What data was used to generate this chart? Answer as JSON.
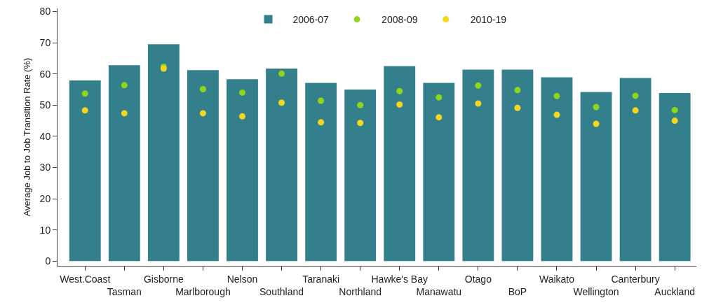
{
  "chart_data": {
    "type": "bar",
    "ylabel": "Average Job to Job Transition Rate (%)",
    "categories": [
      "West.Coast",
      "Tasman",
      "Gisborne",
      "Marlborough",
      "Nelson",
      "Southland",
      "Taranaki",
      "Northland",
      "Hawke's Bay",
      "Manawatu",
      "Otago",
      "BoP",
      "Waikato",
      "Wellington",
      "Canterbury",
      "Auckland"
    ],
    "series": [
      {
        "name": "2006-07",
        "color": "#347f8c",
        "values": [
          57.9,
          62.8,
          69.5,
          61.2,
          58.3,
          61.7,
          57.1,
          55.0,
          62.5,
          57.1,
          61.4,
          61.4,
          58.9,
          54.2,
          58.7,
          53.9
        ]
      },
      {
        "name": "2008-09",
        "type": "scatter",
        "color": "#8fd61a",
        "values": [
          53.7,
          56.4,
          62.3,
          55.1,
          54.0,
          60.1,
          51.4,
          50.0,
          54.5,
          52.5,
          56.3,
          54.8,
          52.9,
          49.4,
          53.0,
          48.4
        ]
      },
      {
        "name": "2010-19",
        "type": "scatter",
        "color": "#f5d81e",
        "values": [
          48.3,
          47.4,
          61.7,
          47.4,
          46.4,
          50.8,
          44.5,
          44.3,
          50.2,
          46.1,
          50.5,
          49.1,
          46.9,
          44.0,
          48.3,
          45.0
        ]
      }
    ],
    "ylim": [
      -1.5,
      81
    ],
    "yticks": [
      0,
      10,
      20,
      30,
      40,
      50,
      60,
      70,
      80
    ],
    "grid": false,
    "legend": "top",
    "marker": "circle"
  }
}
